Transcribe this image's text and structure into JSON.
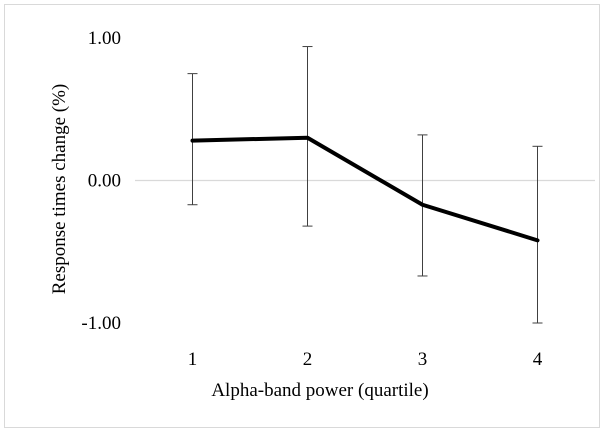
{
  "chart_data": {
    "type": "line",
    "title": "",
    "xlabel": "Alpha-band power (quartile)",
    "ylabel": "Response times  change  (%)",
    "categories": [
      "1",
      "2",
      "3",
      "4"
    ],
    "series": [
      {
        "values": [
          0.28,
          0.3,
          -0.17,
          -0.42
        ],
        "error_upper": [
          0.75,
          0.94,
          0.32,
          0.24
        ],
        "error_lower": [
          -0.17,
          -0.32,
          -0.67,
          -1.0
        ],
        "color": "#000000"
      }
    ],
    "yticks": [
      "1.00",
      "0.00",
      "-1.00"
    ],
    "ytick_values": [
      1.0,
      0.0,
      -1.0
    ],
    "ylim": [
      -1.0,
      1.0
    ],
    "grid": false,
    "zero_line_color": "#d9d9d9",
    "error_bar_color": "#404040"
  }
}
